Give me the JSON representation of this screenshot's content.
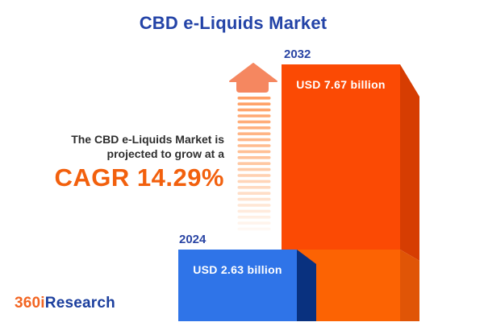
{
  "title": "CBD e-Liquids Market",
  "tagline": {
    "line1": "The CBD e-Liquids Market is",
    "line2": "projected to grow at a",
    "cagr": "CAGR 14.29%"
  },
  "logo": {
    "prefix": "360i",
    "suffix": "Research"
  },
  "chart_data": {
    "type": "bar",
    "orientation": "vertical-3d",
    "categories": [
      "2024",
      "2032"
    ],
    "values": [
      2.63,
      7.67
    ],
    "unit": "USD billion",
    "value_labels": [
      "USD 2.63 billion",
      "USD 7.67 billion"
    ],
    "cagr_percent": 14.29,
    "title": "CBD e-Liquids Market",
    "legend": "none",
    "grid": "off",
    "colors": {
      "bar_2024_front": "#2F74E8",
      "bar_2024_side": "#09317F",
      "bar_2032_front_top": "#FB4A04",
      "bar_2032_front_bottom": "#FC6303",
      "bar_2032_side_top": "#D63D02",
      "bar_2032_side_bottom": "#E05506"
    }
  },
  "colors": {
    "background": "#FFFFFF",
    "title_blue": "#2343A7",
    "year_label_blue": "#2A45A4",
    "tagline_text": "#2E2E2E",
    "cagr_orange": "#F2600D",
    "arrow_head_orange": "#F58760",
    "arrow_stripe_top": "#FF9C60",
    "logo_orange": "#F26522",
    "logo_blue": "#1C3F9E"
  }
}
